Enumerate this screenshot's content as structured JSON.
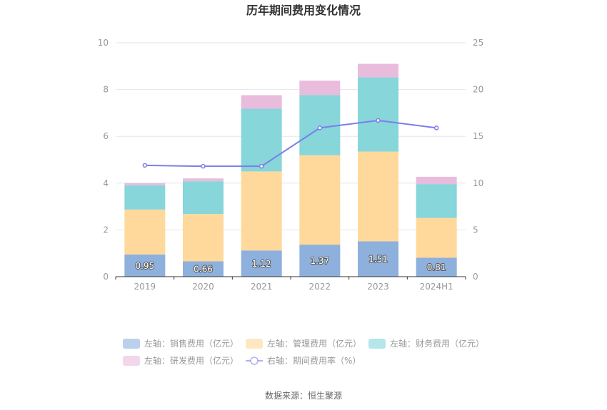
{
  "chart_data": {
    "type": "bar",
    "title": "历年期间费用变化情况",
    "categories": [
      "2019",
      "2020",
      "2021",
      "2022",
      "2023",
      "2024H1"
    ],
    "y_left": {
      "ylim": [
        0,
        10
      ],
      "ticks": [
        "0",
        "2",
        "4",
        "6",
        "8",
        "10"
      ]
    },
    "y_right": {
      "ylim": [
        0,
        25
      ],
      "ticks": [
        "0",
        "5",
        "10",
        "15",
        "20",
        "25"
      ]
    },
    "series": [
      {
        "name": "左轴：销售费用（亿元）",
        "type": "bar",
        "axis": "left",
        "color": "#8eb0dc",
        "values": [
          0.95,
          0.66,
          1.12,
          1.37,
          1.51,
          0.81
        ],
        "labels": [
          "0.95",
          "0.66",
          "1.12",
          "1.37",
          "1.51",
          "0.81"
        ]
      },
      {
        "name": "左轴：管理费用（亿元）",
        "type": "bar",
        "axis": "left",
        "color": "#fed99b",
        "values": [
          1.92,
          2.02,
          3.38,
          3.82,
          3.84,
          1.7
        ]
      },
      {
        "name": "左轴：财务费用（亿元）",
        "type": "bar",
        "axis": "left",
        "color": "#86d6da",
        "values": [
          1.04,
          1.4,
          2.68,
          2.58,
          3.17,
          1.45
        ]
      },
      {
        "name": "左轴：研发费用（亿元）",
        "type": "bar",
        "axis": "left",
        "color": "#e9bcdd",
        "values": [
          0.09,
          0.12,
          0.58,
          0.61,
          0.58,
          0.31
        ]
      },
      {
        "name": "右轴：期间费用率（%）",
        "type": "line",
        "axis": "right",
        "color": "#7b7fe8",
        "values": [
          11.9,
          11.8,
          11.8,
          15.9,
          16.7,
          15.9
        ]
      }
    ],
    "legend_position": "bottom",
    "grid": true,
    "source_text": "数据来源：恒生聚源"
  }
}
